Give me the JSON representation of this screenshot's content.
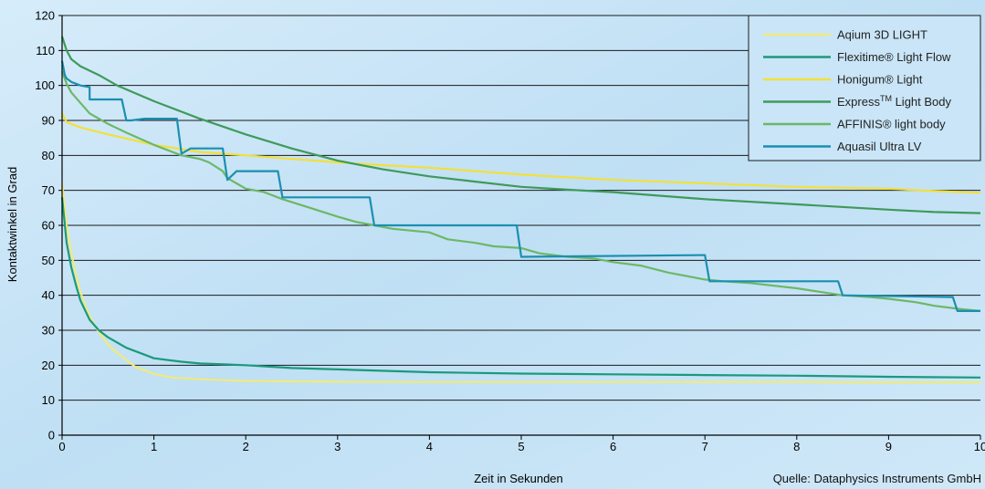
{
  "chart_data": {
    "type": "line",
    "title": "",
    "xlabel": "Zeit in Sekunden",
    "ylabel": "Kontaktwinkel in Grad",
    "xlim": [
      0,
      10
    ],
    "ylim": [
      0,
      120
    ],
    "xticks": [
      0,
      1,
      2,
      3,
      4,
      5,
      6,
      7,
      8,
      9,
      10
    ],
    "yticks": [
      0,
      10,
      20,
      30,
      40,
      50,
      60,
      70,
      80,
      90,
      100,
      110,
      120
    ],
    "grid": "horizontal",
    "legend_position": "top-right",
    "source": "Quelle: Dataphysics Instruments GmbH",
    "series": [
      {
        "name": "Aqium 3D LIGHT",
        "color": "#f0ea7a",
        "x": [
          0,
          0.05,
          0.1,
          0.15,
          0.2,
          0.25,
          0.3,
          0.4,
          0.5,
          0.6,
          0.7,
          0.8,
          1.0,
          1.2,
          1.5,
          2.0,
          3.0,
          4.0,
          5.0,
          6.0,
          7.0,
          8.0,
          9.0,
          10.0
        ],
        "y": [
          72,
          60,
          52,
          46,
          41,
          37,
          34,
          29.5,
          26,
          23.5,
          21.5,
          19.5,
          17.5,
          16.5,
          16,
          15.5,
          15.3,
          15.2,
          15.2,
          15.2,
          15.2,
          15.2,
          15.1,
          15.1
        ]
      },
      {
        "name": "Flexitime® Light Flow",
        "color": "#1a9a7c",
        "x": [
          0,
          0.05,
          0.1,
          0.15,
          0.2,
          0.3,
          0.4,
          0.5,
          0.7,
          0.9,
          1.0,
          1.3,
          1.5,
          2.0,
          2.5,
          3.0,
          4.0,
          5.0,
          6.0,
          7.0,
          8.0,
          9.0,
          10.0
        ],
        "y": [
          68,
          55,
          48,
          43,
          38.5,
          33,
          30,
          28,
          25,
          23,
          22,
          21,
          20.5,
          20,
          19.2,
          18.8,
          18,
          17.6,
          17.4,
          17.2,
          17,
          16.7,
          16.5
        ]
      },
      {
        "name": "Honigum® Light",
        "color": "#f2e03a",
        "x": [
          0,
          0.05,
          0.2,
          0.5,
          1.0,
          1.5,
          2.0,
          2.5,
          3.0,
          3.5,
          4.0,
          5.0,
          6.0,
          7.0,
          8.0,
          9.0,
          9.5,
          10.0
        ],
        "y": [
          92,
          89.5,
          88,
          86,
          83,
          81,
          80,
          79,
          78,
          77.2,
          76.5,
          74.5,
          73,
          72,
          71,
          70.5,
          69.8,
          69.3
        ]
      },
      {
        "name": "ExpressTM Light Body",
        "color": "#3e9a5a",
        "x": [
          0,
          0.05,
          0.1,
          0.2,
          0.4,
          0.6,
          1.0,
          1.5,
          2.0,
          2.5,
          3.0,
          3.5,
          4.0,
          4.5,
          5.0,
          5.5,
          6.0,
          7.0,
          8.0,
          9.0,
          9.5,
          10.0
        ],
        "y": [
          114,
          110,
          107.5,
          105.5,
          103,
          100,
          95.5,
          90.5,
          86,
          82,
          78.5,
          76,
          74,
          72.5,
          71,
          70.2,
          69.5,
          67.5,
          66,
          64.5,
          63.8,
          63.5
        ]
      },
      {
        "name": "AFFINIS® light body",
        "color": "#6cb866",
        "x": [
          0,
          0.05,
          0.1,
          0.2,
          0.3,
          0.5,
          0.7,
          1.0,
          1.2,
          1.3,
          1.5,
          1.6,
          1.75,
          1.8,
          1.9,
          2.0,
          2.2,
          2.4,
          2.7,
          3.0,
          3.2,
          3.4,
          3.6,
          4.0,
          4.2,
          4.5,
          4.7,
          5.0,
          5.2,
          5.5,
          5.8,
          6.0,
          6.3,
          6.6,
          7.0,
          7.2,
          7.5,
          8.0,
          8.5,
          8.8,
          9.0,
          9.3,
          9.5,
          9.8,
          10.0
        ],
        "y": [
          104,
          100.5,
          98,
          95,
          92,
          89,
          86.5,
          83,
          81,
          80,
          79,
          78,
          75.5,
          73.5,
          72,
          70.5,
          69.5,
          67.5,
          65,
          62.5,
          61,
          60,
          59,
          58,
          56,
          55,
          54,
          53.5,
          52,
          51,
          50.5,
          49.5,
          48.5,
          46.5,
          44.5,
          44,
          43.5,
          42,
          40,
          39.5,
          39,
          38,
          37,
          36,
          35.5
        ]
      },
      {
        "name": "Aquasil Ultra LV",
        "color": "#1b8fb0",
        "x": [
          0,
          0.03,
          0.05,
          0.1,
          0.2,
          0.3,
          0.3,
          0.65,
          0.7,
          0.75,
          0.9,
          1.0,
          1.25,
          1.3,
          1.4,
          1.75,
          1.8,
          1.9,
          2.35,
          2.4,
          3.35,
          3.4,
          4.95,
          5.0,
          7.0,
          7.05,
          8.45,
          8.5,
          9.7,
          9.75,
          10.0
        ],
        "y": [
          107,
          103,
          102,
          101,
          100,
          99.5,
          96,
          96,
          90,
          90,
          90.5,
          90.5,
          90.5,
          80.5,
          82,
          82,
          73,
          75.5,
          75.5,
          68,
          68,
          60,
          60,
          51,
          51.5,
          44,
          44,
          40,
          39.5,
          35.5,
          35.5
        ]
      }
    ]
  }
}
